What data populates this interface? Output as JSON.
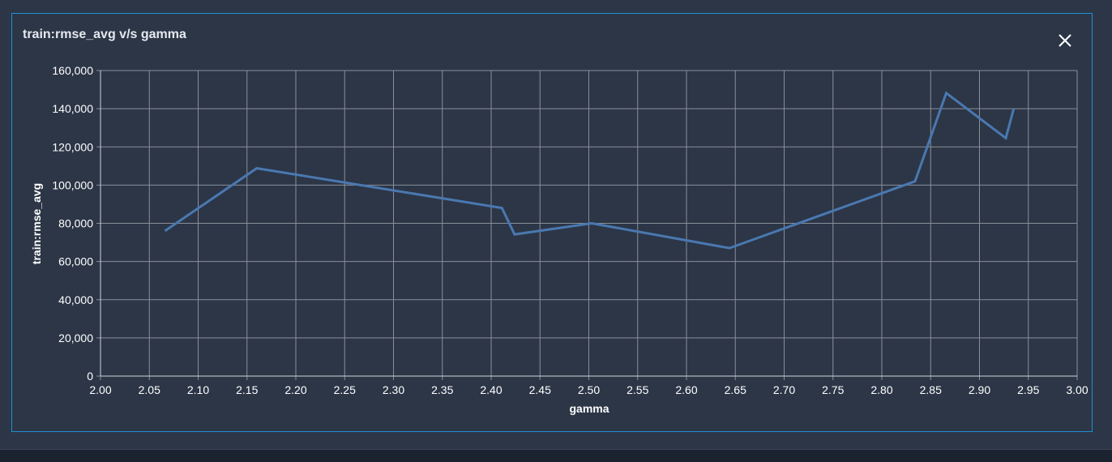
{
  "panel": {
    "title": "train:rmse_avg v/s gamma",
    "close_icon": "close-icon"
  },
  "colors": {
    "background": "#2c3647",
    "panel_border": "#1f8fd6",
    "grid": "#8a8f98",
    "line": "#4a78b0",
    "text": "#ffffff"
  },
  "chart_data": {
    "type": "line",
    "title": "train:rmse_avg v/s gamma",
    "xlabel": "gamma",
    "ylabel": "train:rmse_avg",
    "xlim": [
      2.0,
      3.0
    ],
    "ylim": [
      0,
      160000
    ],
    "xticks": [
      "2.00",
      "2.05",
      "2.10",
      "2.15",
      "2.20",
      "2.25",
      "2.30",
      "2.35",
      "2.40",
      "2.45",
      "2.50",
      "2.55",
      "2.60",
      "2.65",
      "2.70",
      "2.75",
      "2.80",
      "2.85",
      "2.90",
      "2.95",
      "3.00"
    ],
    "yticks": [
      "0",
      "20,000",
      "40,000",
      "60,000",
      "80,000",
      "100,000",
      "120,000",
      "140,000",
      "160,000"
    ],
    "grid": true,
    "series": [
      {
        "x": [
          2.066,
          2.16,
          2.411,
          2.424,
          2.503,
          2.644,
          2.834,
          2.866,
          2.927,
          2.935
        ],
        "y": [
          76000,
          108800,
          88000,
          74200,
          80000,
          67000,
          102000,
          148200,
          124600,
          140000
        ]
      }
    ]
  }
}
